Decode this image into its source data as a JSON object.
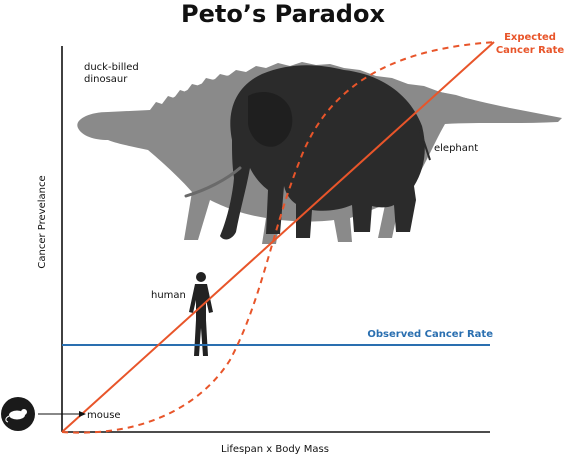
{
  "title": "Peto’s Paradox",
  "axes": {
    "xlabel": "Lifespan x Body Mass",
    "ylabel": "Cancer Prevelance"
  },
  "series": {
    "expected": {
      "label_line1": "Expected",
      "label_line2": "Cancer Rate",
      "color": "#e8552a"
    },
    "observed": {
      "label": "Observed Cancer Rate",
      "color": "#2a6fb0"
    }
  },
  "animals": {
    "dinosaur": {
      "label_line1": "duck-billed",
      "label_line2": "dinosaur",
      "color": "#8a8a8a"
    },
    "elephant": {
      "label": "elephant",
      "color": "#2b2b2b"
    },
    "human": {
      "label": "human",
      "color": "#222222"
    },
    "mouse": {
      "label": "mouse",
      "icon": "mouse-icon"
    }
  },
  "colors": {
    "axis": "#111111",
    "text": "#111111"
  }
}
